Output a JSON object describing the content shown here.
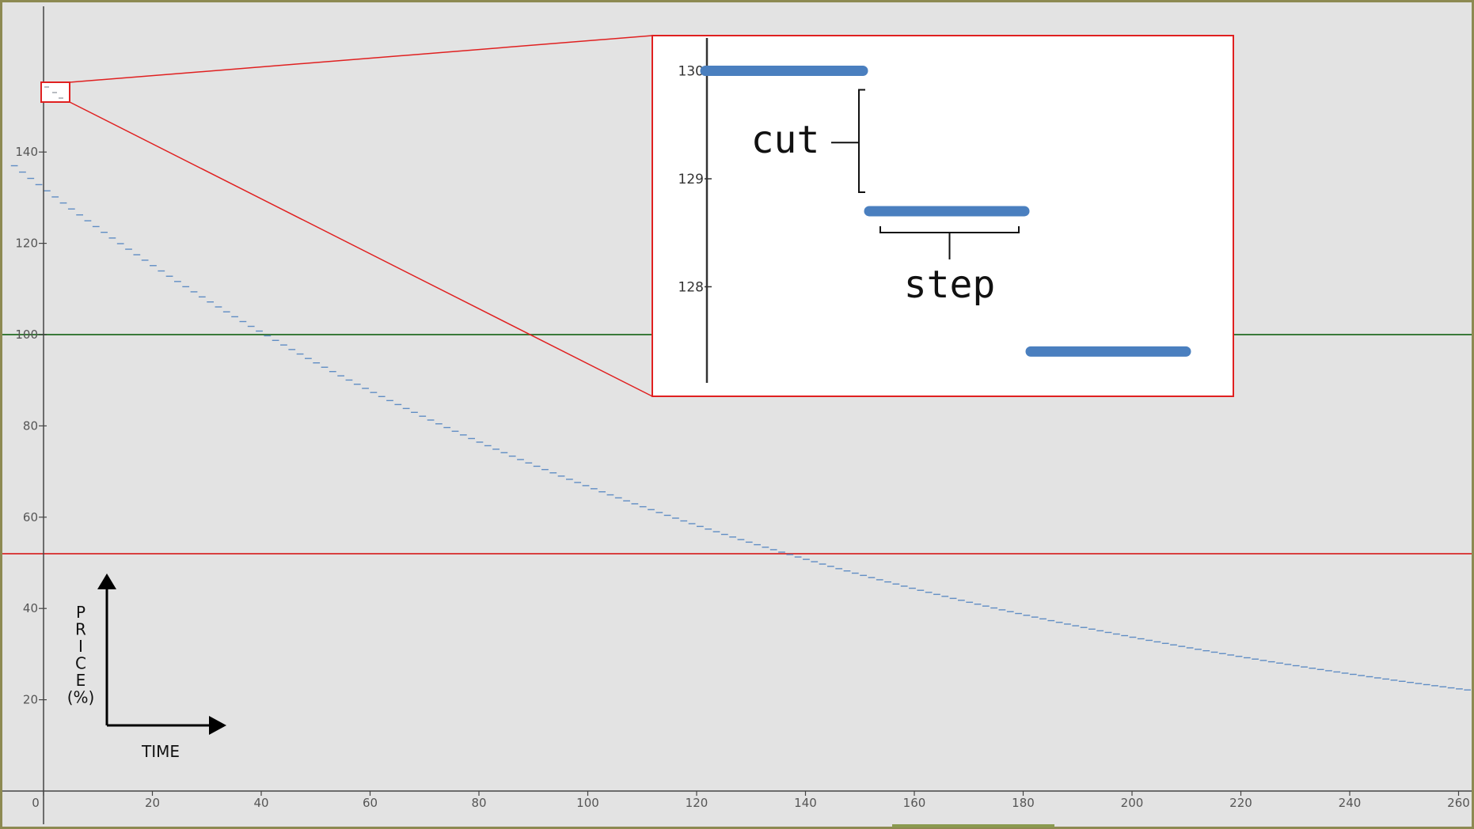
{
  "chart_data": {
    "type": "line",
    "style": "step",
    "title": "",
    "xlabel": "TIME",
    "ylabel_letters": [
      "P",
      "R",
      "I",
      "C",
      "E",
      "(%)"
    ],
    "xlim": [
      0,
      262
    ],
    "ylim": [
      0,
      144
    ],
    "x_ticks": [
      0,
      20,
      40,
      60,
      80,
      100,
      120,
      140,
      160,
      180,
      200,
      220,
      240,
      260
    ],
    "y_ticks": [
      20,
      40,
      60,
      80,
      100,
      120,
      140
    ],
    "grid": false,
    "reference_lines": [
      {
        "y": 100,
        "color": "#3a7a3a"
      },
      {
        "y": 52,
        "color": "#d94040"
      }
    ],
    "series": [
      {
        "color": "#4a7fbf",
        "step_width": 1.5,
        "start_x": -6,
        "start_y": 137,
        "end_x": 262,
        "end_y": 22,
        "decay": "exponential"
      }
    ],
    "zoom_region": {
      "x": [
        0,
        5
      ],
      "y": [
        127.2,
        130.5
      ]
    },
    "inset": {
      "y_ticks": [
        128,
        129,
        130
      ],
      "steps": [
        {
          "x": [
            0,
            1
          ],
          "y": 130.0
        },
        {
          "x": [
            1,
            2
          ],
          "y": 128.7
        },
        {
          "x": [
            2,
            3
          ],
          "y": 127.4
        }
      ],
      "annotations": {
        "cut": "cut",
        "step": "step"
      }
    }
  },
  "colors": {
    "background": "#e3e3e3",
    "frame": "#8d8a52",
    "axis": "#444444",
    "series": "#4a7fbf",
    "inset_border": "#e02020"
  }
}
